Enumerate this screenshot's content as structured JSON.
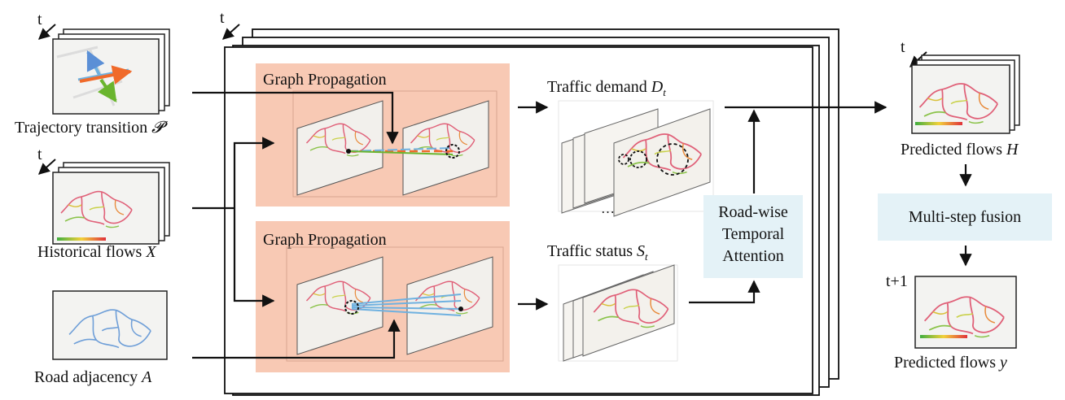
{
  "inputs": {
    "trajectory": {
      "label": "Trajectory transition",
      "symbol": "𝓟",
      "time": "t"
    },
    "historical": {
      "label": "Historical flows",
      "symbol": "X",
      "time": "t"
    },
    "adjacency": {
      "label": "Road adjacency",
      "symbol": "A"
    }
  },
  "stack": {
    "time": "t"
  },
  "modules": {
    "propagation_top": {
      "title": "Graph Propagation"
    },
    "propagation_bottom": {
      "title": "Graph Propagation"
    },
    "demand": {
      "label": "Traffic demand",
      "symbol": "D",
      "sub": "t",
      "ellipsis": "…"
    },
    "status": {
      "label": "Traffic status",
      "symbol": "S",
      "sub": "t"
    },
    "attention": {
      "line1": "Road-wise",
      "line2": "Temporal",
      "line3": "Attention"
    }
  },
  "outputs": {
    "predicted_h": {
      "label": "Predicted flows",
      "symbol": "H",
      "time": "t"
    },
    "fusion": {
      "label": "Multi-step fusion"
    },
    "predicted_y": {
      "label": "Predicted flows",
      "symbol": "y",
      "time": "t+1"
    }
  },
  "colors": {
    "propagation_bg": "#f8c9b4",
    "attention_bg": "#e4f2f7",
    "road_red": "#e06078",
    "road_green": "#8bc34a",
    "road_blue": "#6f9fd8",
    "arrow": "#111111"
  }
}
